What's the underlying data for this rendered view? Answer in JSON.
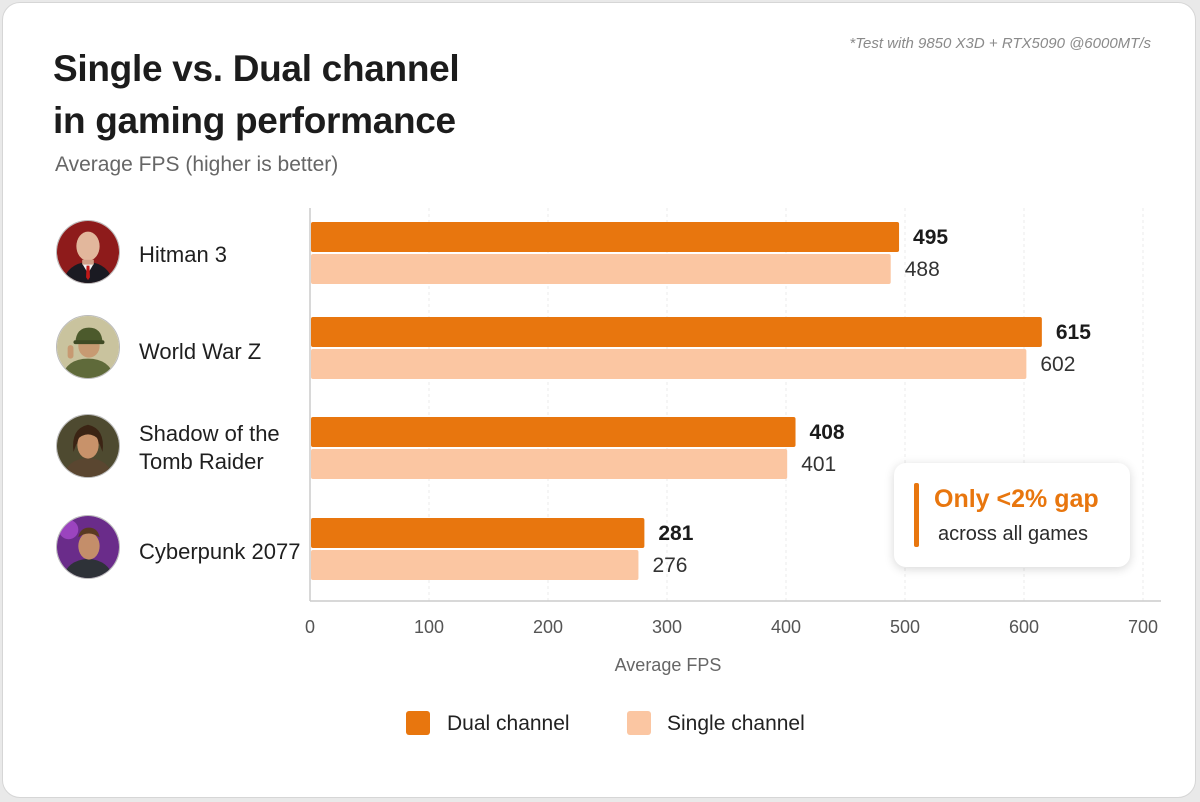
{
  "header": {
    "title_line1": "Single vs. Dual channel",
    "title_line2": "in gaming performance",
    "subtitle": "Average FPS (higher is better)",
    "footnote": "*Test with 9850 X3D + RTX5090 @6000MT/s"
  },
  "callout": {
    "main": "Only <2% gap",
    "sub": "across all games"
  },
  "legend": {
    "dual": "Dual channel",
    "single": "Single channel"
  },
  "icons": {
    "hitman": "hitman-avatar-icon",
    "wwz": "soldier-avatar-icon",
    "tomb": "lara-avatar-icon",
    "cyber": "cyberpunk-avatar-icon"
  },
  "colors": {
    "dual": "#e8760e",
    "single": "#fbc6a2",
    "accent": "#e8760e"
  },
  "chart_data": {
    "type": "bar",
    "orientation": "horizontal",
    "categories": [
      "Hitman 3",
      "World War Z",
      "Shadow of the Tomb Raider",
      "Cyberpunk 2077"
    ],
    "category_lines": [
      [
        "Hitman 3"
      ],
      [
        "World War Z"
      ],
      [
        "Shadow of the",
        "Tomb Raider"
      ],
      [
        "Cyberpunk 2077"
      ]
    ],
    "series": [
      {
        "name": "Dual channel",
        "values": [
          495,
          615,
          408,
          281
        ],
        "color": "#e8760e"
      },
      {
        "name": "Single channel",
        "values": [
          488,
          602,
          401,
          276
        ],
        "color": "#fbc6a2"
      }
    ],
    "title": "Single vs. Dual channel in gaming performance",
    "subtitle": "Average FPS (higher is better)",
    "xlabel": "Average FPS",
    "xlim": [
      0,
      700
    ],
    "xticks": [
      0,
      100,
      200,
      300,
      400,
      500,
      600,
      700
    ],
    "grid": true,
    "legend_position": "bottom-center"
  }
}
